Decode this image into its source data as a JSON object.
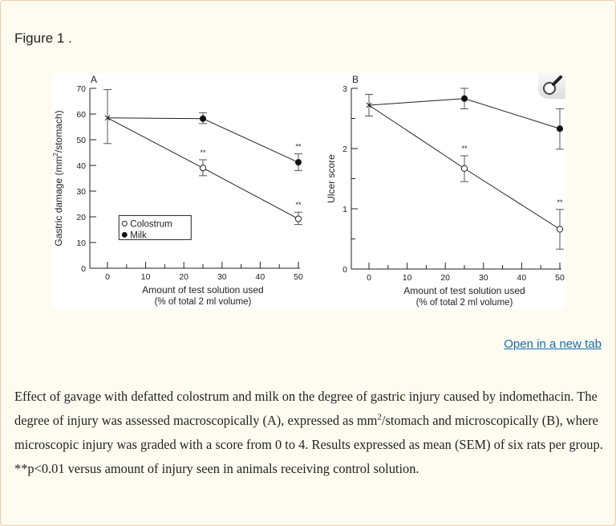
{
  "figure": {
    "title": "Figure 1 .",
    "open_new_tab": "Open in a new tab",
    "caption": {
      "part1": "Effect of gavage with defatted colostrum and milk on the degree of gastric injury caused by indomethacin. The degree of injury was assessed macroscopically (A), expressed as mm",
      "sup": "2",
      "part2": "/stomach and microscopically (B), where microscopic injury was graded with a score from 0 to 4. Results expressed as mean (SEM) of six rats per group. **p<0.01 versus amount of injury seen in animals receiving control solution."
    },
    "zoom_icon": "magnifier-icon"
  },
  "chart_data": [
    {
      "type": "line",
      "panel_label": "A",
      "xlabel": "Amount of test solution used",
      "xlabel2": "(% of total 2 ml volume)",
      "ylabel": {
        "pre": "Gastric damage (mm",
        "sup": "2",
        "post": "/stomach)"
      },
      "xlim": [
        0,
        50
      ],
      "ylim": [
        0,
        70
      ],
      "xticks": [
        0,
        10,
        20,
        30,
        40,
        50
      ],
      "yticks": [
        0,
        10,
        20,
        30,
        40,
        50,
        60,
        70
      ],
      "legend": {
        "placement": "lower-left",
        "entries": [
          "Colostrum",
          "Milk"
        ]
      },
      "control": {
        "x": 0,
        "y": 58.5,
        "err_low": 48.5,
        "err_high": 69.5
      },
      "series": [
        {
          "name": "Colostrum",
          "marker": "open-circle",
          "x": [
            0,
            25,
            50
          ],
          "y": [
            58.5,
            39,
            19.2
          ],
          "err_low": [
            48.5,
            36,
            17
          ],
          "err_high": [
            69.5,
            42.2,
            21.8
          ],
          "annotations": [
            "",
            "**",
            "**"
          ]
        },
        {
          "name": "Milk",
          "marker": "filled-circle",
          "x": [
            0,
            25,
            50
          ],
          "y": [
            58.5,
            58.2,
            41.2
          ],
          "err_low": [
            48.5,
            56.3,
            38
          ],
          "err_high": [
            69.5,
            60.5,
            44.5
          ],
          "annotations": [
            "",
            "",
            "**"
          ]
        }
      ]
    },
    {
      "type": "line",
      "panel_label": "B",
      "xlabel": "Amount of test solution used",
      "xlabel2": "(% of total 2 ml volume)",
      "ylabel": {
        "pre": "Ulcer score",
        "sup": "",
        "post": ""
      },
      "xlim": [
        0,
        50
      ],
      "ylim": [
        0,
        3
      ],
      "xticks": [
        0,
        10,
        20,
        30,
        40,
        50
      ],
      "yticks": [
        0,
        1,
        2,
        3
      ],
      "control": {
        "x": 0,
        "y": 2.72,
        "err_low": 2.54,
        "err_high": 2.9
      },
      "series": [
        {
          "name": "Colostrum",
          "marker": "open-circle",
          "x": [
            0,
            25,
            50
          ],
          "y": [
            2.72,
            1.67,
            0.66
          ],
          "err_low": [
            2.54,
            1.45,
            0.33
          ],
          "err_high": [
            2.9,
            1.88,
            0.99
          ],
          "annotations": [
            "",
            "**",
            "**"
          ]
        },
        {
          "name": "Milk",
          "marker": "filled-circle",
          "x": [
            0,
            25,
            50
          ],
          "y": [
            2.72,
            2.83,
            2.33
          ],
          "err_low": [
            2.54,
            2.66,
            1.99
          ],
          "err_high": [
            2.9,
            3.0,
            2.66
          ],
          "annotations": [
            "",
            "",
            ""
          ]
        }
      ]
    }
  ]
}
